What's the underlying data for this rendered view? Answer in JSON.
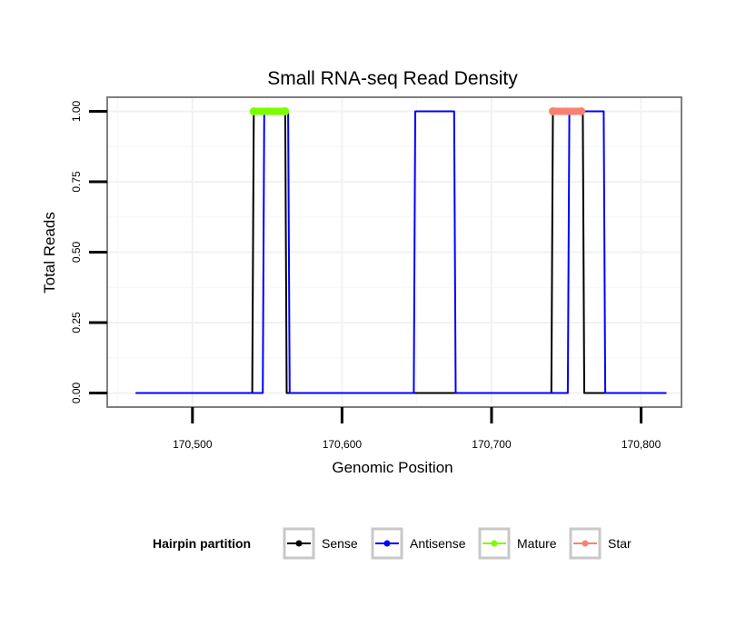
{
  "chart_data": {
    "type": "line",
    "title": "Small RNA-seq Read Density",
    "xlabel": "Genomic Position",
    "ylabel": "Total Reads",
    "xlim": [
      170443,
      170827
    ],
    "ylim": [
      -0.05,
      1.05
    ],
    "x_ticks": [
      170500,
      170600,
      170700,
      170800
    ],
    "x_tick_labels": [
      "170,500",
      "170,600",
      "170,700",
      "170,800"
    ],
    "y_ticks": [
      0,
      0.25,
      0.5,
      0.75,
      1
    ],
    "y_tick_labels": [
      "0.00",
      "0.25",
      "0.50",
      "0.75",
      "1.00"
    ],
    "grid": true,
    "legend": {
      "title": "Hairpin partition",
      "position": "bottom",
      "entries": [
        {
          "name": "Sense",
          "color": "#000000"
        },
        {
          "name": "Antisense",
          "color": "#0000ff"
        },
        {
          "name": "Mature",
          "color": "#7cfc00"
        },
        {
          "name": "Star",
          "color": "#fa8072"
        }
      ]
    },
    "series": [
      {
        "name": "Sense",
        "color": "#000000",
        "x": [
          170462,
          170540,
          170541,
          170562,
          170563,
          170740,
          170741,
          170761,
          170762,
          170817
        ],
        "y": [
          0,
          0,
          1,
          1,
          0,
          0,
          1,
          1,
          0,
          0
        ]
      },
      {
        "name": "Antisense",
        "color": "#0000ff",
        "x": [
          170462,
          170547,
          170548,
          170564,
          170565,
          170648,
          170649,
          170675,
          170676,
          170751,
          170752,
          170775,
          170776,
          170817
        ],
        "y": [
          0,
          0,
          1,
          1,
          0,
          0,
          1,
          1,
          0,
          0,
          1,
          1,
          0,
          0
        ]
      },
      {
        "name": "Mature",
        "color": "#7cfc00",
        "x": [
          170541,
          170562
        ],
        "y": [
          1,
          1
        ]
      },
      {
        "name": "Star",
        "color": "#fa8072",
        "x": [
          170741,
          170760
        ],
        "y": [
          1,
          1
        ]
      }
    ]
  }
}
